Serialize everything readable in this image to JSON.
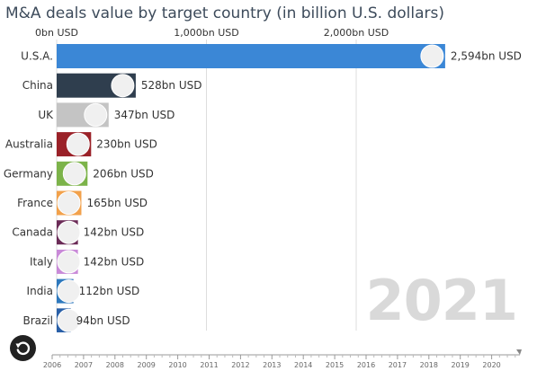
{
  "title": "M&A deals value by target country (in billion U.S. dollars)",
  "year": "2021",
  "chart_data": {
    "type": "bar",
    "orientation": "horizontal",
    "title": "M&A deals value by target country (in billion U.S. dollars)",
    "xlim": [
      0,
      2600
    ],
    "axis_ticks": [
      {
        "value": 0,
        "label": "0bn USD"
      },
      {
        "value": 1000,
        "label": "1,000bn USD"
      },
      {
        "value": 2000,
        "label": "2,000bn USD"
      }
    ],
    "categories": [
      "U.S.A.",
      "China",
      "UK",
      "Australia",
      "Germany",
      "France",
      "Canada",
      "Italy",
      "India",
      "Brazil"
    ],
    "values": [
      2594,
      528,
      347,
      230,
      206,
      165,
      142,
      142,
      112,
      94
    ],
    "value_labels": [
      "2,594bn USD",
      "528bn USD",
      "347bn USD",
      "230bn USD",
      "206bn USD",
      "165bn USD",
      "142bn USD",
      "142bn USD",
      "112bn USD",
      "94bn USD"
    ],
    "colors": [
      "#3b87d6",
      "#2f3e4e",
      "#c4c4c4",
      "#9a2128",
      "#7cb34a",
      "#f2a14b",
      "#6b2b57",
      "#c98ad8",
      "#2e79bd",
      "#2a60a8"
    ]
  },
  "timeline": {
    "years": [
      "2006",
      "2007",
      "2008",
      "2009",
      "2010",
      "2011",
      "2012",
      "2013",
      "2014",
      "2015",
      "2016",
      "2017",
      "2018",
      "2019",
      "2020"
    ]
  }
}
